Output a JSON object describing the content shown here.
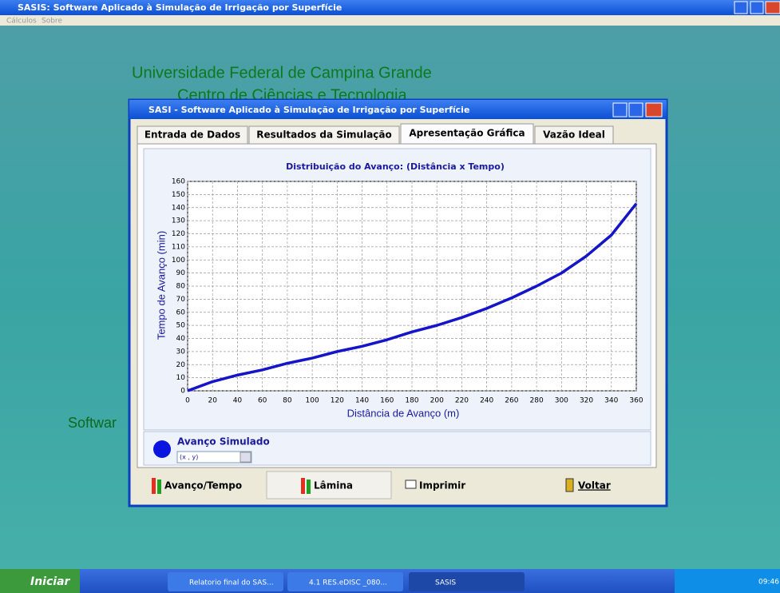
{
  "window": {
    "title": "SASIS: Software Aplicado à Simulação de Irrigação por Superfície",
    "menu": [
      "Cálculos",
      "Sobre"
    ]
  },
  "background": {
    "lines": [
      "Universidade Federal de Campina Grande",
      "Centro de Ciências e Tecnologia",
      "Softwar"
    ]
  },
  "dialog": {
    "title": "SASI - Software Aplicado à Simulação de Irrigação por Superfície",
    "tabs": [
      "Entrada de Dados",
      "Resultados da Simulação",
      "Apresentação Gráfica",
      "Vazão Ideal"
    ],
    "legend": {
      "name": "Avanço Simulado",
      "select": "(x , y)"
    },
    "buttons": [
      "Avanço/Tempo",
      "Lâmina",
      "Imprimir",
      "Voltar"
    ]
  },
  "chart_data": {
    "type": "line",
    "title": "Distribuição do Avanço: (Distância x Tempo)",
    "x_label": "Distância de Avanço (m)",
    "y_label": "Tempo de Avanço (min)",
    "x": [
      0,
      20,
      40,
      60,
      80,
      100,
      120,
      140,
      160,
      180,
      200,
      220,
      240,
      260,
      280,
      300,
      320,
      340,
      360
    ],
    "series": [
      {
        "name": "Avanço Simulado",
        "color": "#1414c8",
        "values": [
          0,
          7,
          12,
          16,
          21,
          25,
          30,
          34,
          39,
          45,
          50,
          56,
          63,
          71,
          80,
          90,
          103,
          119,
          143
        ]
      }
    ],
    "xlim": [
      0,
      360
    ],
    "xticks": [
      0,
      20,
      40,
      60,
      80,
      100,
      120,
      140,
      160,
      180,
      200,
      220,
      240,
      260,
      280,
      300,
      320,
      340,
      360
    ],
    "ylim": [
      0,
      160
    ],
    "yticks": [
      0,
      10,
      20,
      30,
      40,
      50,
      60,
      70,
      80,
      90,
      100,
      110,
      120,
      130,
      140,
      150,
      160
    ],
    "grid": true
  },
  "taskbar": {
    "start": "Iniciar",
    "items": [
      "Relatorio final do SAS...",
      "4.1 RES.eDISC _080...",
      "SASIS"
    ],
    "clock": "09:46"
  }
}
